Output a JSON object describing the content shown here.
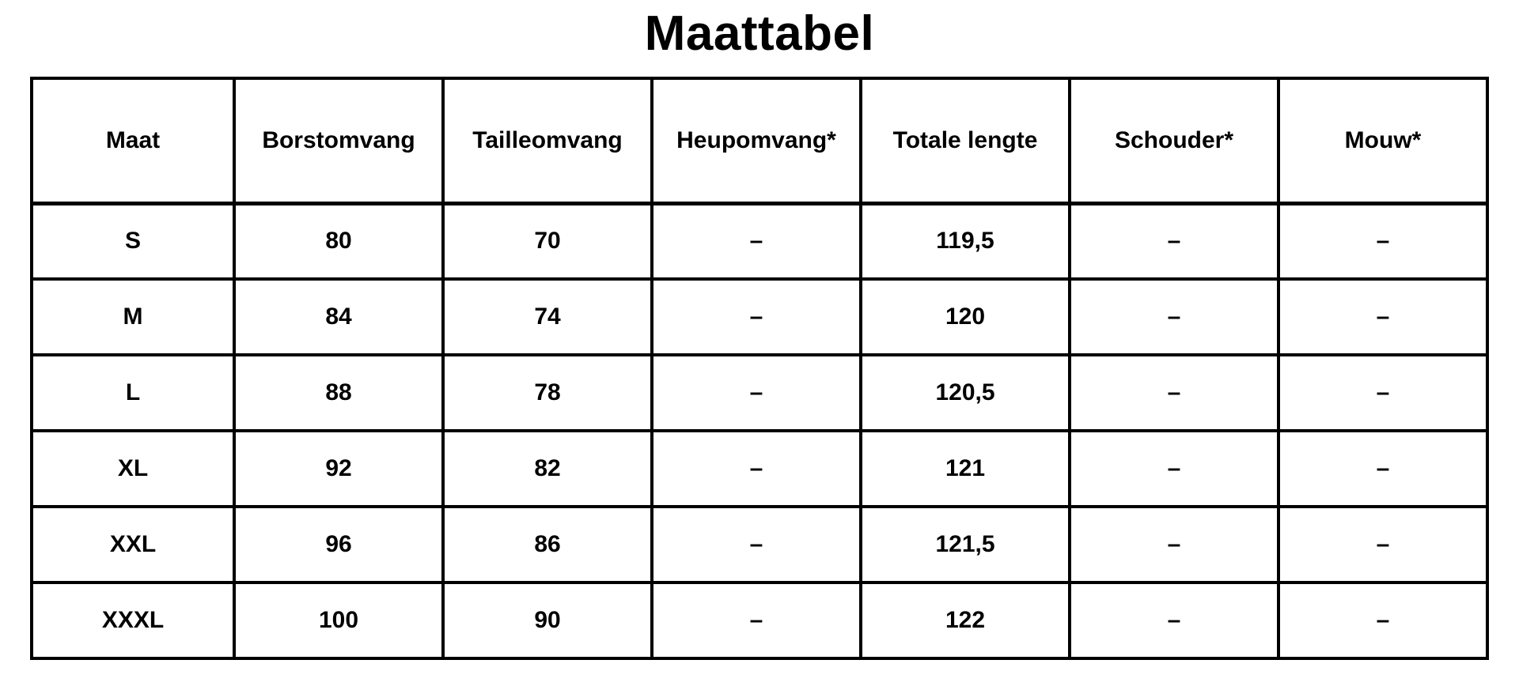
{
  "title": "Maattabel",
  "table": {
    "headers": [
      "Maat",
      "Borstomvang",
      "Tailleomvang",
      "Heupomvang*",
      "Totale lengte",
      "Schouder*",
      "Mouw*"
    ],
    "rows": [
      [
        "S",
        "80",
        "70",
        "–",
        "119,5",
        "–",
        "–"
      ],
      [
        "M",
        "84",
        "74",
        "–",
        "120",
        "–",
        "–"
      ],
      [
        "L",
        "88",
        "78",
        "–",
        "120,5",
        "–",
        "–"
      ],
      [
        "XL",
        "92",
        "82",
        "–",
        "121",
        "–",
        "–"
      ],
      [
        "XXL",
        "96",
        "86",
        "–",
        "121,5",
        "–",
        "–"
      ],
      [
        "XXXL",
        "100",
        "90",
        "–",
        "122",
        "–",
        "–"
      ]
    ]
  },
  "colors": {
    "background": "#ffffff",
    "border": "#000000",
    "text": "#000000"
  }
}
